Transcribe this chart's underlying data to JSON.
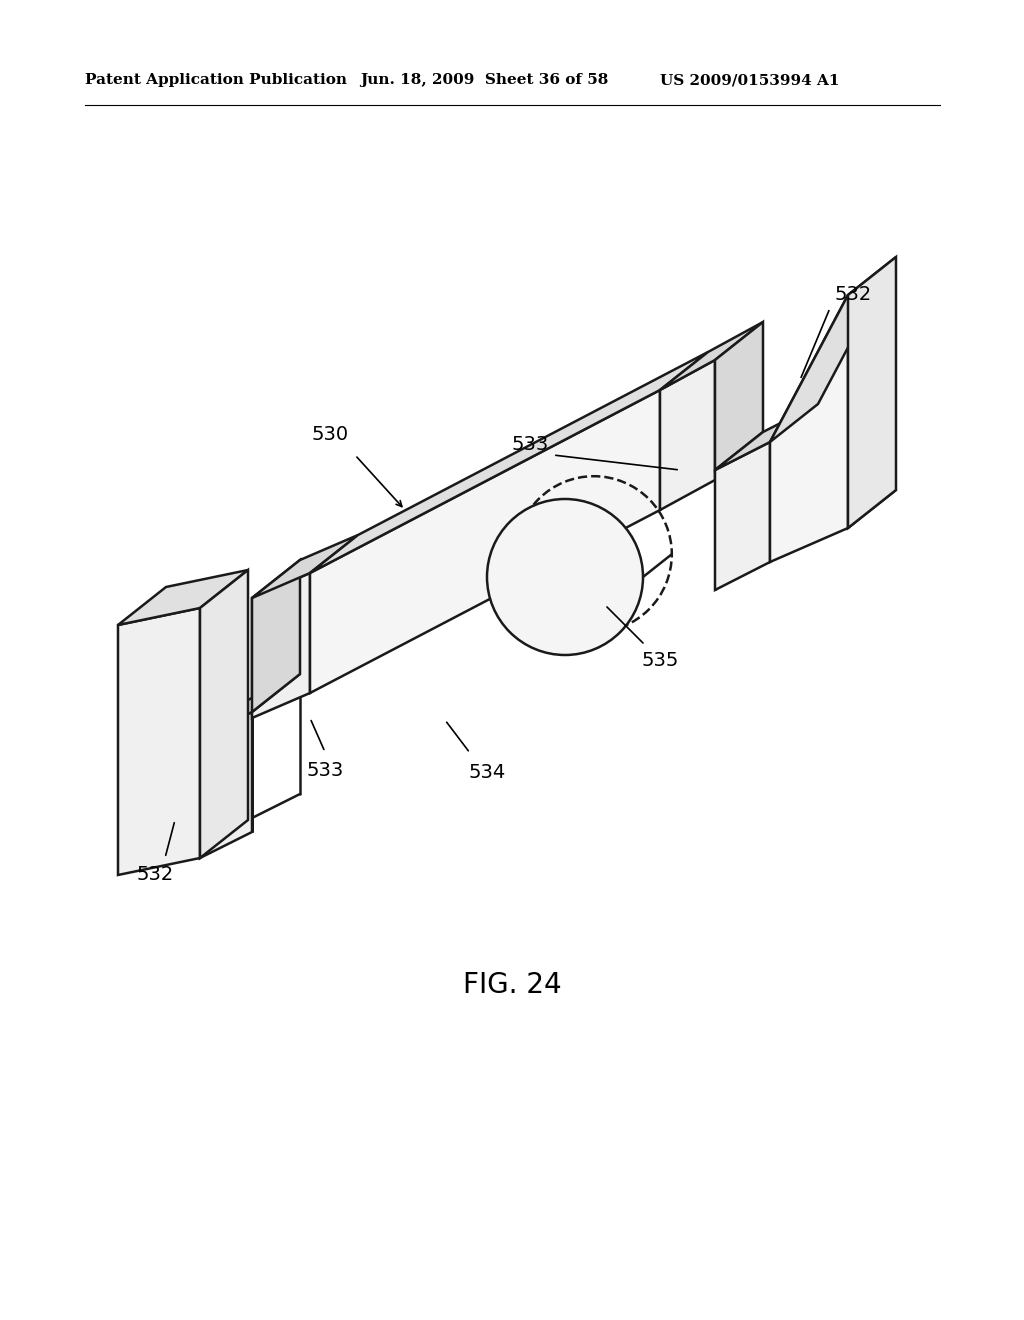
{
  "title": "FIG. 24",
  "header_left": "Patent Application Publication",
  "header_center": "Jun. 18, 2009  Sheet 36 of 58",
  "header_right": "US 2009/0153994 A1",
  "background": "#ffffff",
  "line_color": "#1a1a1a",
  "line_width": 1.8,
  "label_fontsize": 14,
  "title_fontsize": 20,
  "header_fontsize": 11
}
